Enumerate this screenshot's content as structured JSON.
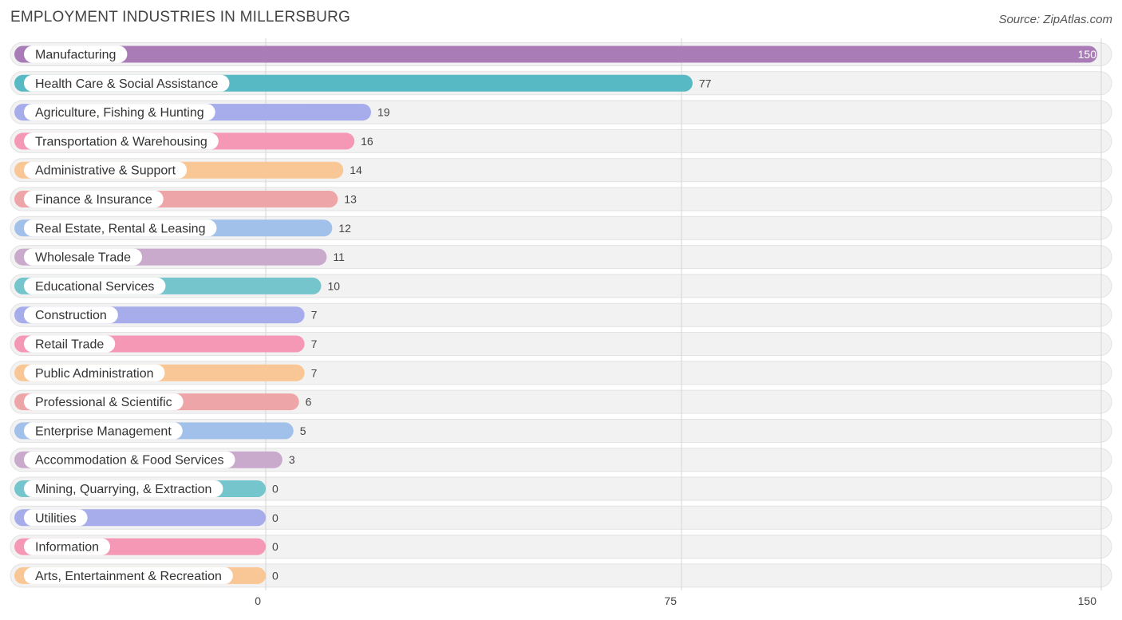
{
  "header": {
    "title": "EMPLOYMENT INDUSTRIES IN MILLERSBURG",
    "source": "Source: ZipAtlas.com"
  },
  "chart_data": {
    "type": "bar",
    "orientation": "horizontal",
    "title": "EMPLOYMENT INDUSTRIES IN MILLERSBURG",
    "categories": [
      "Manufacturing",
      "Health Care & Social Assistance",
      "Agriculture, Fishing & Hunting",
      "Transportation & Warehousing",
      "Administrative & Support",
      "Finance & Insurance",
      "Real Estate, Rental & Leasing",
      "Wholesale Trade",
      "Educational Services",
      "Construction",
      "Retail Trade",
      "Public Administration",
      "Professional & Scientific",
      "Enterprise Management",
      "Accommodation & Food Services",
      "Mining, Quarrying, & Extraction",
      "Utilities",
      "Information",
      "Arts, Entertainment & Recreation"
    ],
    "values": [
      150,
      77,
      19,
      16,
      14,
      13,
      12,
      11,
      10,
      7,
      7,
      7,
      6,
      5,
      3,
      0,
      0,
      0,
      0
    ],
    "value_labels": [
      "150",
      "77",
      "19",
      "16",
      "14",
      "13",
      "12",
      "11",
      "10",
      "7",
      "7",
      "7",
      "6",
      "5",
      "3",
      "0",
      "0",
      "0",
      "0"
    ],
    "colors": [
      "#a97cb8",
      "#56b9c4",
      "#a7acea",
      "#f598b5",
      "#f9c795",
      "#eda5a7",
      "#a1c1ea",
      "#c9a9cc",
      "#74c6cc",
      "#a7acea",
      "#f598b5",
      "#f9c795",
      "#eda5a7",
      "#a1c1ea",
      "#c9a9cc",
      "#74c6cc",
      "#a7acea",
      "#f598b5",
      "#f9c795"
    ],
    "xlim": [
      0,
      150
    ],
    "x_ticks": [
      0,
      75,
      150
    ],
    "x_tick_labels": [
      "0",
      "75",
      "150"
    ],
    "grid": true,
    "legend": "none"
  }
}
